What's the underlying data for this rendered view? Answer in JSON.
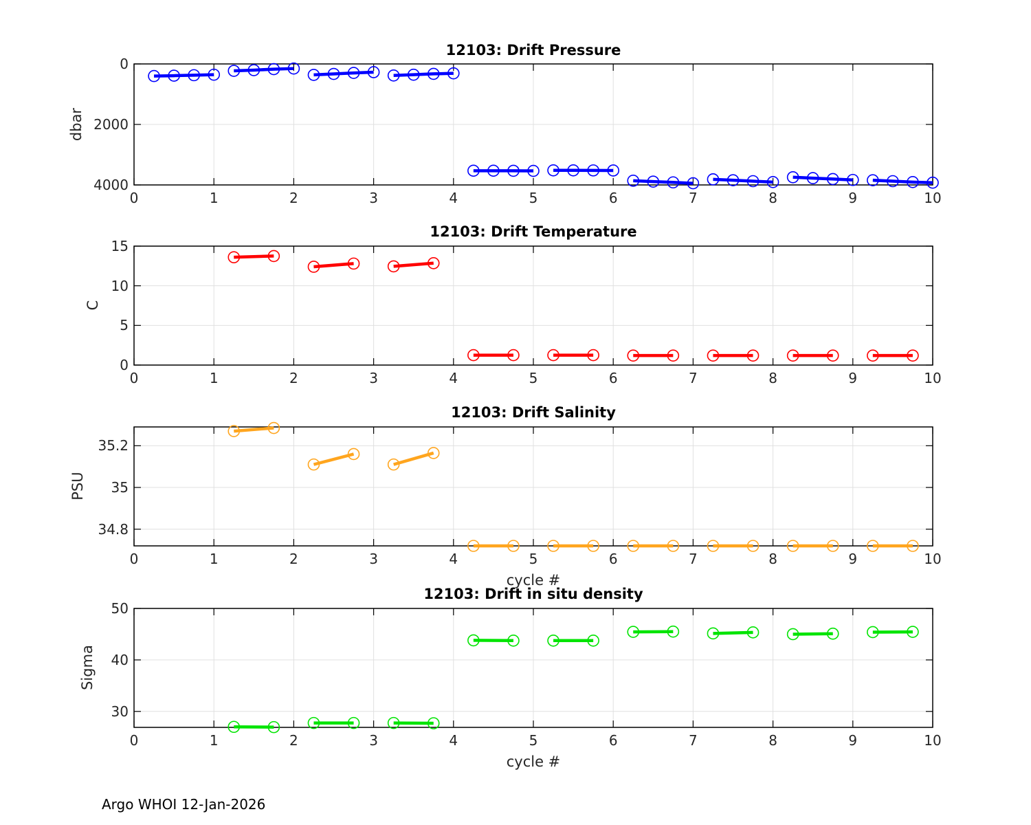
{
  "figure": {
    "footer_text": "Argo WHOI 12-Jan-2026",
    "background": "#ffffff",
    "text_color": "#262626",
    "grid_color": "#e0e0e0",
    "box_color": "#000000"
  },
  "chart_data": [
    {
      "type": "line",
      "title": "12103: Drift Pressure",
      "ylabel": "dbar",
      "xlabel": "",
      "color": "#0000ff",
      "marker": "open-circle",
      "grid": true,
      "xlim": [
        0,
        10
      ],
      "xticks": [
        0,
        1,
        2,
        3,
        4,
        5,
        6,
        7,
        8,
        9,
        10
      ],
      "ylim": [
        0,
        4000
      ],
      "y_reversed": true,
      "yticks": [
        0,
        2000,
        4000
      ],
      "ytick_labels": [
        "0",
        "2000",
        "4000"
      ],
      "segments": [
        {
          "x": [
            0.25,
            0.5,
            0.75,
            1.0
          ],
          "y": [
            400,
            388,
            372,
            355
          ]
        },
        {
          "x": [
            1.25,
            1.5,
            1.75,
            2.0
          ],
          "y": [
            228,
            205,
            172,
            152
          ]
        },
        {
          "x": [
            2.25,
            2.5,
            2.75,
            3.0
          ],
          "y": [
            362,
            330,
            297,
            272
          ]
        },
        {
          "x": [
            3.25,
            3.5,
            3.75,
            4.0
          ],
          "y": [
            382,
            356,
            328,
            310
          ]
        },
        {
          "x": [
            4.25,
            4.5,
            4.75,
            5.0
          ],
          "y": [
            3530,
            3530,
            3532,
            3535
          ]
        },
        {
          "x": [
            5.25,
            5.5,
            5.75,
            6.0
          ],
          "y": [
            3518,
            3518,
            3520,
            3522
          ]
        },
        {
          "x": [
            6.25,
            6.5,
            6.75,
            7.0
          ],
          "y": [
            3860,
            3890,
            3915,
            3945
          ]
        },
        {
          "x": [
            7.25,
            7.5,
            7.75,
            8.0
          ],
          "y": [
            3815,
            3845,
            3875,
            3905
          ]
        },
        {
          "x": [
            8.25,
            8.5,
            8.75,
            9.0
          ],
          "y": [
            3745,
            3775,
            3805,
            3835
          ]
        },
        {
          "x": [
            9.25,
            9.5,
            9.75,
            10.0
          ],
          "y": [
            3845,
            3875,
            3905,
            3925
          ]
        }
      ]
    },
    {
      "type": "line",
      "title": "12103: Drift Temperature",
      "ylabel": "C",
      "xlabel": "",
      "color": "#ff0000",
      "marker": "open-circle",
      "grid": true,
      "xlim": [
        0,
        10
      ],
      "xticks": [
        0,
        1,
        2,
        3,
        4,
        5,
        6,
        7,
        8,
        9,
        10
      ],
      "ylim": [
        0,
        15
      ],
      "y_reversed": false,
      "yticks": [
        0,
        5,
        10,
        15
      ],
      "ytick_labels": [
        "0",
        "5",
        "10",
        "15"
      ],
      "segments": [
        {
          "x": [
            1.25,
            1.75
          ],
          "y": [
            13.6,
            13.75
          ]
        },
        {
          "x": [
            2.25,
            2.75
          ],
          "y": [
            12.4,
            12.8
          ]
        },
        {
          "x": [
            3.25,
            3.75
          ],
          "y": [
            12.45,
            12.85
          ]
        },
        {
          "x": [
            4.25,
            4.75
          ],
          "y": [
            1.25,
            1.25
          ]
        },
        {
          "x": [
            5.25,
            5.75
          ],
          "y": [
            1.25,
            1.25
          ]
        },
        {
          "x": [
            6.25,
            6.75
          ],
          "y": [
            1.2,
            1.2
          ]
        },
        {
          "x": [
            7.25,
            7.75
          ],
          "y": [
            1.2,
            1.2
          ]
        },
        {
          "x": [
            8.25,
            8.75
          ],
          "y": [
            1.2,
            1.2
          ]
        },
        {
          "x": [
            9.25,
            9.75
          ],
          "y": [
            1.2,
            1.2
          ]
        }
      ]
    },
    {
      "type": "line",
      "title": "12103: Drift Salinity",
      "ylabel": "PSU",
      "xlabel": "cycle #",
      "color": "#ffa51e",
      "marker": "open-circle",
      "grid": true,
      "xlim": [
        0,
        10
      ],
      "xticks": [
        0,
        1,
        2,
        3,
        4,
        5,
        6,
        7,
        8,
        9,
        10
      ],
      "ylim": [
        34.72,
        35.29
      ],
      "y_reversed": false,
      "yticks": [
        34.8,
        35,
        35.2
      ],
      "ytick_labels": [
        "34.8",
        "35",
        "35.2"
      ],
      "segments": [
        {
          "x": [
            1.25,
            1.75
          ],
          "y": [
            35.27,
            35.285
          ]
        },
        {
          "x": [
            2.25,
            2.75
          ],
          "y": [
            35.11,
            35.16
          ]
        },
        {
          "x": [
            3.25,
            3.75
          ],
          "y": [
            35.11,
            35.165
          ]
        },
        {
          "x": [
            4.25,
            4.75
          ],
          "y": [
            34.72,
            34.72
          ]
        },
        {
          "x": [
            5.25,
            5.75
          ],
          "y": [
            34.72,
            34.72
          ]
        },
        {
          "x": [
            6.25,
            6.75
          ],
          "y": [
            34.72,
            34.72
          ]
        },
        {
          "x": [
            7.25,
            7.75
          ],
          "y": [
            34.72,
            34.72
          ]
        },
        {
          "x": [
            8.25,
            8.75
          ],
          "y": [
            34.72,
            34.72
          ]
        },
        {
          "x": [
            9.25,
            9.75
          ],
          "y": [
            34.72,
            34.72
          ]
        }
      ]
    },
    {
      "type": "line",
      "title": "12103: Drift in situ density",
      "ylabel": "Sigma",
      "xlabel": "cycle #",
      "color": "#00e400",
      "marker": "open-circle",
      "grid": true,
      "xlim": [
        0,
        10
      ],
      "xticks": [
        0,
        1,
        2,
        3,
        4,
        5,
        6,
        7,
        8,
        9,
        10
      ],
      "ylim": [
        26.9,
        50
      ],
      "y_reversed": false,
      "yticks": [
        30,
        40,
        50
      ],
      "ytick_labels": [
        "30",
        "40",
        "50"
      ],
      "segments": [
        {
          "x": [
            1.25,
            1.75
          ],
          "y": [
            27.0,
            26.95
          ]
        },
        {
          "x": [
            2.25,
            2.75
          ],
          "y": [
            27.75,
            27.75
          ]
        },
        {
          "x": [
            3.25,
            3.75
          ],
          "y": [
            27.75,
            27.7
          ]
        },
        {
          "x": [
            4.25,
            4.75
          ],
          "y": [
            43.8,
            43.75
          ]
        },
        {
          "x": [
            5.25,
            5.75
          ],
          "y": [
            43.75,
            43.75
          ]
        },
        {
          "x": [
            6.25,
            6.75
          ],
          "y": [
            45.45,
            45.5
          ]
        },
        {
          "x": [
            7.25,
            7.75
          ],
          "y": [
            45.15,
            45.35
          ]
        },
        {
          "x": [
            8.25,
            8.75
          ],
          "y": [
            45.0,
            45.1
          ]
        },
        {
          "x": [
            9.25,
            9.75
          ],
          "y": [
            45.4,
            45.45
          ]
        }
      ]
    }
  ]
}
